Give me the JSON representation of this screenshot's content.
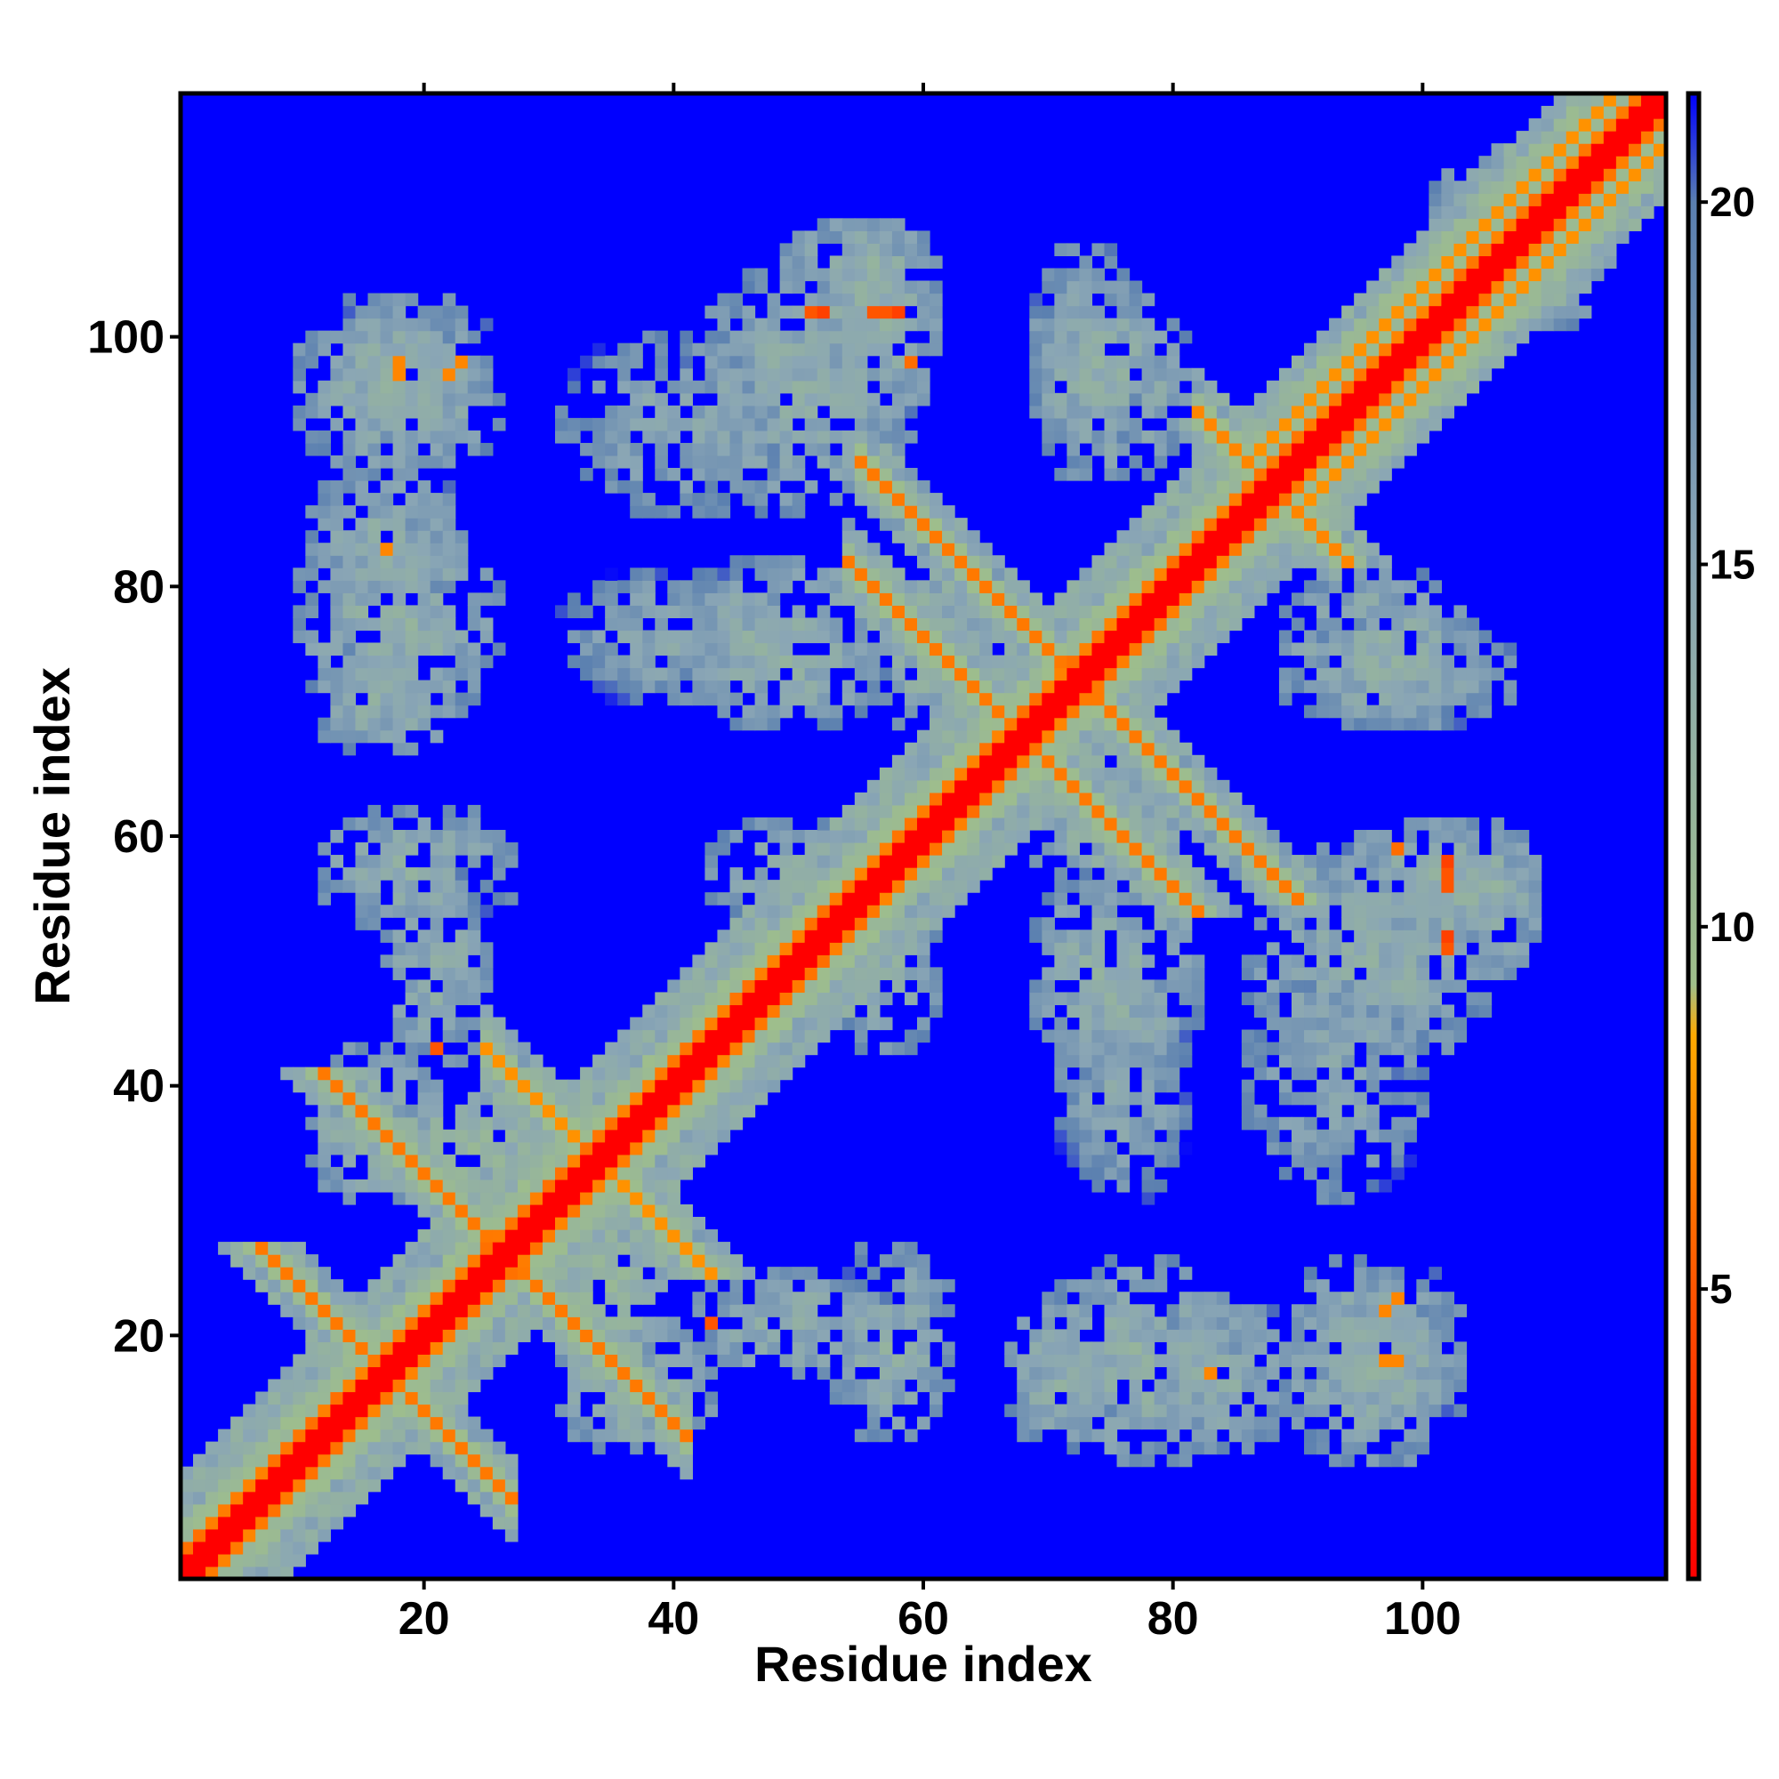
{
  "chart_data": {
    "type": "heatmap",
    "title": "",
    "xlabel": "Residue index",
    "ylabel": "Residue index",
    "n_residues": 119,
    "xlim": [
      0.5,
      119.5
    ],
    "ylim": [
      0.5,
      119.5
    ],
    "x_ticks": [
      20,
      40,
      60,
      80,
      100
    ],
    "y_ticks": [
      20,
      40,
      60,
      80,
      100
    ],
    "colorbar": {
      "range": [
        1,
        21.5
      ],
      "ticks": [
        5,
        10,
        15,
        20
      ],
      "stops": [
        {
          "value": 1,
          "color": "#ff0000"
        },
        {
          "value": 5,
          "color": "#ff5500"
        },
        {
          "value": 8.5,
          "color": "#ffaa00"
        },
        {
          "value": 9.2,
          "color": "#9fbf8a"
        },
        {
          "value": 15,
          "color": "#8aa6b5"
        },
        {
          "value": 20,
          "color": "#5a7fb0"
        },
        {
          "value": 21.5,
          "color": "#0000ff"
        }
      ]
    },
    "background_color": "#0000ff",
    "diagonal": {
      "contact_value": 1,
      "width_red": 1.6,
      "width_orange": 3.2,
      "width_green": 9
    },
    "contact_features": [
      {
        "type": "antiparallel",
        "center": [
          23,
          30
        ],
        "span": [
          19,
          41
        ],
        "value": 6.5
      },
      {
        "type": "antiparallel",
        "center": [
          20,
          14
        ],
        "span": [
          13,
          27
        ],
        "value": 6.5
      },
      {
        "type": "antiparallel",
        "center": [
          30,
          38
        ],
        "span": [
          25,
          40
        ],
        "value": 7.5
      },
      {
        "type": "antiparallel",
        "center": [
          73,
          72
        ],
        "span": [
          55,
          78
        ],
        "value": 6.5
      },
      {
        "type": "antiparallel",
        "center": [
          67,
          69
        ],
        "span": [
          54,
          81
        ],
        "value": 6.5
      },
      {
        "type": "antiparallel",
        "center": [
          88,
          88
        ],
        "span": [
          82,
          93
        ],
        "value": 7
      },
      {
        "type": "parallel",
        "offset": 4,
        "span": [
          90,
          117
        ],
        "value": 7.5
      },
      {
        "type": "parallel",
        "offset": -4,
        "span": [
          90,
          117
        ],
        "value": 7.5
      },
      {
        "type": "cluster",
        "x_range": [
          9,
          27
        ],
        "y_range": [
          88,
          104
        ],
        "value": 14.5
      },
      {
        "type": "cluster",
        "x_range": [
          9,
          27
        ],
        "y_range": [
          68,
          86
        ],
        "value": 14.5
      },
      {
        "type": "cluster",
        "x_range": [
          10,
          28
        ],
        "y_range": [
          52,
          63
        ],
        "value": 15
      },
      {
        "type": "cluster",
        "x_range": [
          40,
          60
        ],
        "y_range": [
          85,
          106
        ],
        "value": 15
      },
      {
        "type": "cluster",
        "x_range": [
          48,
          62
        ],
        "y_range": [
          100,
          110
        ],
        "value": 14.5
      },
      {
        "type": "cluster",
        "x_range": [
          40,
          58
        ],
        "y_range": [
          68,
          83
        ],
        "value": 14.5
      },
      {
        "type": "cluster",
        "x_range": [
          42,
          58
        ],
        "y_range": [
          52,
          62
        ],
        "value": 15
      },
      {
        "type": "cluster",
        "x_range": [
          68,
          82
        ],
        "y_range": [
          88,
          105
        ],
        "value": 14.5
      },
      {
        "type": "cluster",
        "x_range": [
          68,
          82
        ],
        "y_range": [
          55,
          66
        ],
        "value": 14
      },
      {
        "type": "cluster",
        "x_range": [
          92,
          110
        ],
        "y_range": [
          50,
          62
        ],
        "value": 14.5
      },
      {
        "type": "cluster",
        "x_range": [
          88,
          108
        ],
        "y_range": [
          68,
          78
        ],
        "value": 15
      },
      {
        "type": "cluster",
        "x_range": [
          100,
          116
        ],
        "y_range": [
          100,
          114
        ],
        "value": 14
      },
      {
        "type": "cluster",
        "x_range": [
          70,
          82
        ],
        "y_range": [
          30,
          50
        ],
        "value": 16
      },
      {
        "type": "cluster",
        "x_range": [
          85,
          101
        ],
        "y_range": [
          30,
          50
        ],
        "value": 16
      },
      {
        "type": "cluster",
        "x_range": [
          41,
          58
        ],
        "y_range": [
          16,
          26
        ],
        "value": 15
      },
      {
        "type": "cluster",
        "x_range": [
          66,
          76
        ],
        "y_range": [
          10,
          24
        ],
        "value": 15
      },
      {
        "type": "cluster",
        "x_range": [
          77,
          90
        ],
        "y_range": [
          10,
          24
        ],
        "value": 15
      },
      {
        "type": "cluster",
        "x_range": [
          89,
          104
        ],
        "y_range": [
          12,
          24
        ],
        "value": 15
      },
      {
        "type": "cluster",
        "x_range": [
          30,
          44
        ],
        "y_range": [
          10,
          22
        ],
        "value": 14
      },
      {
        "type": "cluster",
        "x_range": [
          16,
          32
        ],
        "y_range": [
          28,
          40
        ],
        "value": 13
      },
      {
        "type": "spot",
        "x": 51,
        "y": 102,
        "value": 5
      },
      {
        "type": "spot",
        "x": 56,
        "y": 102,
        "value": 5
      },
      {
        "type": "spot",
        "x": 52,
        "y": 102,
        "value": 5
      },
      {
        "type": "spot",
        "x": 57,
        "y": 102,
        "value": 5
      },
      {
        "type": "spot",
        "x": 102,
        "y": 58,
        "value": 4
      },
      {
        "type": "spot",
        "x": 102,
        "y": 52,
        "value": 4
      },
      {
        "type": "spot",
        "x": 98,
        "y": 59,
        "value": 6
      },
      {
        "type": "spot",
        "x": 97,
        "y": 22,
        "value": 7
      },
      {
        "type": "spot",
        "x": 97,
        "y": 18,
        "value": 7
      },
      {
        "type": "spot",
        "x": 17,
        "y": 83,
        "value": 7
      },
      {
        "type": "spot",
        "x": 43,
        "y": 21,
        "value": 5
      },
      {
        "type": "spot",
        "x": 18,
        "y": 98,
        "value": 7
      },
      {
        "type": "spot",
        "x": 23,
        "y": 98,
        "value": 7
      }
    ]
  }
}
